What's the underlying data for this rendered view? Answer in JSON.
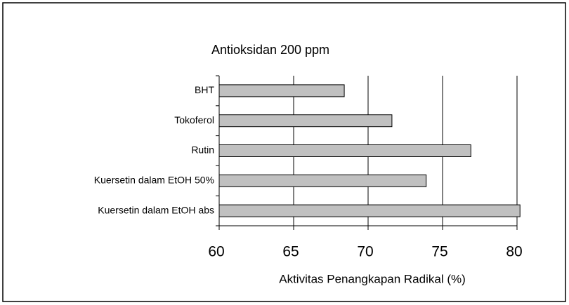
{
  "chart_data": {
    "type": "bar",
    "orientation": "horizontal",
    "title": "Antioksidan 200 ppm",
    "x_label": "Aktivitas Penangkapan Radikal (%)",
    "categories": [
      "BHT",
      "Tokoferol",
      "Rutin",
      "Kuersetin dalam EtOH 50%",
      "Kuersetin dalam EtOH abs"
    ],
    "values": [
      68.4,
      71.6,
      76.9,
      73.9,
      80.2
    ],
    "color": "#c0c0c0",
    "xlim": [
      60,
      80
    ],
    "xticks": [
      60,
      65,
      70,
      75,
      80
    ],
    "grid": true
  }
}
